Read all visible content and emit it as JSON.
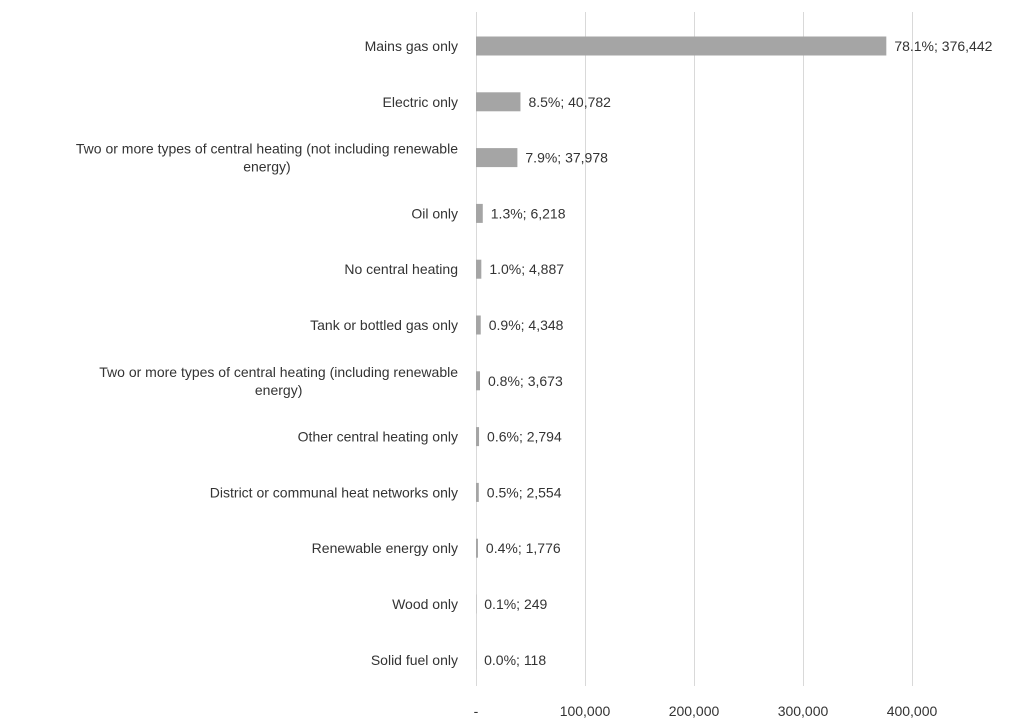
{
  "chart_data": {
    "type": "bar",
    "orientation": "horizontal",
    "title": "",
    "xlabel": "",
    "ylabel": "",
    "xlim": [
      0,
      400000
    ],
    "grid": true,
    "legend": "none",
    "bar_color": "#a5a5a5",
    "gridline_color": "#d9d9d9",
    "text_color": "#333333",
    "x_ticks": [
      {
        "value": 0,
        "label": "-"
      },
      {
        "value": 100000,
        "label": "100,000"
      },
      {
        "value": 200000,
        "label": "200,000"
      },
      {
        "value": 300000,
        "label": "300,000"
      },
      {
        "value": 400000,
        "label": "400,000"
      }
    ],
    "categories": [
      [
        "Mains gas only"
      ],
      [
        "Electric only"
      ],
      [
        "Two or more types of central heating (not including renewable",
        "energy)"
      ],
      [
        "Oil only"
      ],
      [
        "No central heating"
      ],
      [
        "Tank or bottled gas only"
      ],
      [
        "Two or more types of central heating (including renewable",
        "energy)"
      ],
      [
        "Other central heating only"
      ],
      [
        "District or communal heat networks only"
      ],
      [
        "Renewable energy only"
      ],
      [
        "Wood only"
      ],
      [
        "Solid fuel only"
      ]
    ],
    "values": [
      376442,
      40782,
      37978,
      6218,
      4887,
      4348,
      3673,
      2794,
      2554,
      1776,
      249,
      118
    ],
    "data_labels": [
      "78.1%;  376,442",
      "8.5%;  40,782",
      "7.9%;  37,978",
      "1.3%;  6,218",
      "1.0%;  4,887",
      "0.9%;  4,348",
      "0.8%;  3,673",
      "0.6%;  2,794",
      "0.5%;  2,554",
      "0.4%;  1,776",
      "0.1%;  249",
      "0.0%;  118"
    ]
  }
}
